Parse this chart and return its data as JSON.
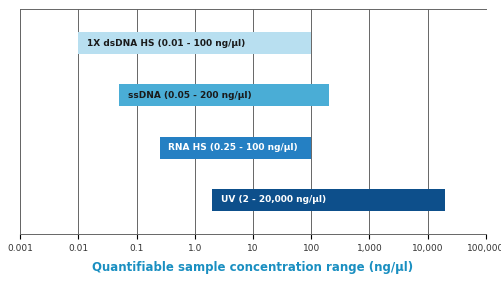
{
  "bars": [
    {
      "label": "1X dsDNA HS (0.01 - 100 ng/µl)",
      "xmin": 0.01,
      "xmax": 100,
      "color": "#b8dff0",
      "text_color": "#1a1a1a"
    },
    {
      "label": "ssDNA (0.05 - 200 ng/µl)",
      "xmin": 0.05,
      "xmax": 200,
      "color": "#4aadd6",
      "text_color": "#1a1a1a"
    },
    {
      "label": "RNA HS (0.25 - 100 ng/µl)",
      "xmin": 0.25,
      "xmax": 100,
      "color": "#2580c3",
      "text_color": "#ffffff"
    },
    {
      "label": "UV (2 - 20,000 ng/µl)",
      "xmin": 2,
      "xmax": 20000,
      "color": "#0d4f8b",
      "text_color": "#ffffff"
    }
  ],
  "xlim_log": [
    -3,
    5
  ],
  "xtick_values": [
    0.001,
    0.01,
    0.1,
    1.0,
    10,
    100,
    1000,
    10000,
    100000
  ],
  "xtick_labels": [
    "0.001",
    "0.01",
    "0.1",
    "1.0",
    "10",
    "100",
    "1,000",
    "10,000",
    "100,000"
  ],
  "xlabel": "Quantifiable sample concentration range (ng/µl)",
  "xlabel_color": "#1a8fc1",
  "bar_height": 0.42,
  "background_color": "#ffffff",
  "grid_color": "#666666",
  "font_size_label": 6.5,
  "font_size_xtick": 6.5,
  "font_size_xlabel": 8.5
}
